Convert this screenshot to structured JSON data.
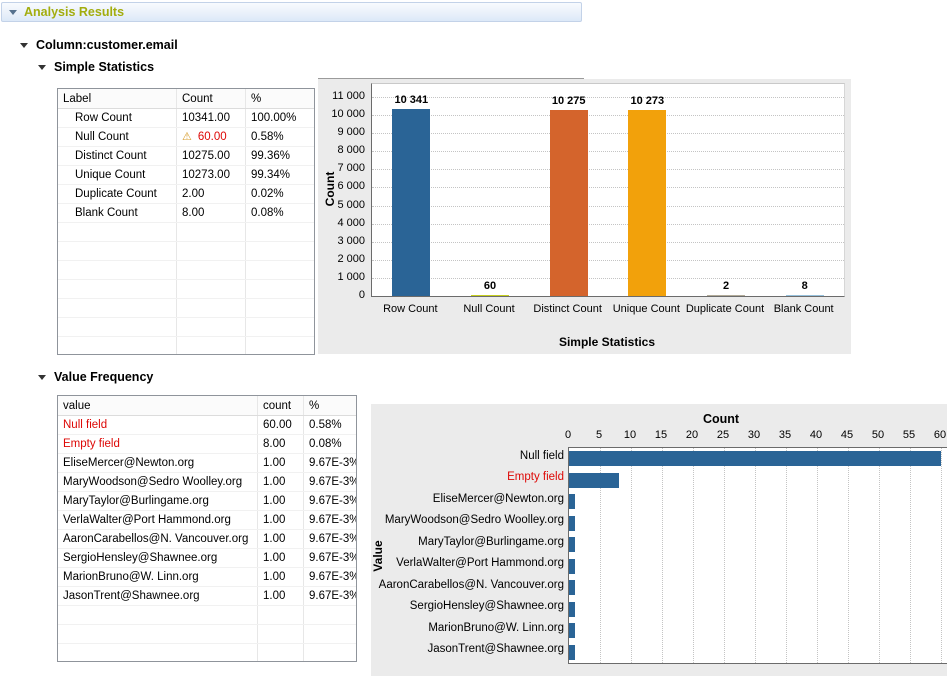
{
  "header": {
    "title": "Analysis Results"
  },
  "sections": {
    "column_title": "Column:customer.email",
    "simple_statistics_title": "Simple Statistics",
    "value_frequency_title": "Value Frequency"
  },
  "colors": {
    "header_text": "#a3ad0e",
    "alert_red": "#dd0806",
    "panel_gray": "#ebebeb",
    "bar_blue": "#2a6496"
  },
  "stats_table": {
    "columns": [
      "Label",
      "Count",
      "%"
    ],
    "rows": [
      {
        "label": "Row Count",
        "count": "10341.00",
        "pct": "100.00%"
      },
      {
        "label": "Null Count",
        "count": "60.00",
        "pct": "0.58%",
        "warning": true,
        "red_cells": [
          1
        ]
      },
      {
        "label": "Distinct Count",
        "count": "10275.00",
        "pct": "99.36%"
      },
      {
        "label": "Unique Count",
        "count": "10273.00",
        "pct": "99.34%"
      },
      {
        "label": "Duplicate Count",
        "count": "2.00",
        "pct": "0.02%"
      },
      {
        "label": "Blank Count",
        "count": "8.00",
        "pct": "0.08%"
      }
    ]
  },
  "freq_table": {
    "columns": [
      "value",
      "count",
      "%"
    ],
    "rows": [
      {
        "value": "Null field",
        "count": "60.00",
        "pct": "0.58%",
        "red_cells": [
          0
        ]
      },
      {
        "value": "Empty field",
        "count": "8.00",
        "pct": "0.08%",
        "red_cells": [
          0
        ]
      },
      {
        "value": "EliseMercer@Newton.org",
        "count": "1.00",
        "pct": "9.67E-3%"
      },
      {
        "value": "MaryWoodson@Sedro Woolley.org",
        "count": "1.00",
        "pct": "9.67E-3%"
      },
      {
        "value": "MaryTaylor@Burlingame.org",
        "count": "1.00",
        "pct": "9.67E-3%"
      },
      {
        "value": "VerlaWalter@Port Hammond.org",
        "count": "1.00",
        "pct": "9.67E-3%"
      },
      {
        "value": "AaronCarabellos@N. Vancouver.org",
        "count": "1.00",
        "pct": "9.67E-3%"
      },
      {
        "value": "SergioHensley@Shawnee.org",
        "count": "1.00",
        "pct": "9.67E-3%"
      },
      {
        "value": "MarionBruno@W. Linn.org",
        "count": "1.00",
        "pct": "9.67E-3%"
      },
      {
        "value": "JasonTrent@Shawnee.org",
        "count": "1.00",
        "pct": "9.67E-3%"
      }
    ]
  },
  "chart_data": [
    {
      "type": "bar",
      "title": "",
      "xlabel": "Simple Statistics",
      "ylabel": "Count",
      "categories": [
        "Row Count",
        "Null Count",
        "Distinct Count",
        "Unique Count",
        "Duplicate Count",
        "Blank Count"
      ],
      "values": [
        10341,
        60,
        10275,
        10273,
        2,
        8
      ],
      "bar_labels": [
        "10 341",
        "60",
        "10 275",
        "10 273",
        "2",
        "8"
      ],
      "bar_colors": [
        "#2a6496",
        "#c6cf1e",
        "#d4642c",
        "#f2a10b",
        "#b2ab99",
        "#97c1dc"
      ],
      "ylim": [
        0,
        11000
      ],
      "yticks": [
        0,
        1000,
        2000,
        3000,
        4000,
        5000,
        6000,
        7000,
        8000,
        9000,
        10000,
        11000
      ],
      "ytick_labels": [
        "0",
        "1 000",
        "2 000",
        "3 000",
        "4 000",
        "5 000",
        "6 000",
        "7 000",
        "8 000",
        "9 000",
        "10 000",
        "11 000"
      ],
      "grid": "horizontal dotted",
      "legend": "none"
    },
    {
      "type": "bar-horizontal",
      "title": "Count",
      "ylabel": "Value",
      "categories": [
        "Null field",
        "Empty field",
        "EliseMercer@Newton.org",
        "MaryWoodson@Sedro Woolley.org",
        "MaryTaylor@Burlingame.org",
        "VerlaWalter@Port Hammond.org",
        "AaronCarabellos@N. Vancouver.org",
        "SergioHensley@Shawnee.org",
        "MarionBruno@W. Linn.org",
        "JasonTrent@Shawnee.org"
      ],
      "values": [
        60,
        8,
        1,
        1,
        1,
        1,
        1,
        1,
        1,
        1
      ],
      "red_label_indexes": [
        1
      ],
      "xlim": [
        0,
        60
      ],
      "xticks": [
        0,
        5,
        10,
        15,
        20,
        25,
        30,
        35,
        40,
        45,
        50,
        55,
        60
      ],
      "bar_color": "#2a6496",
      "grid": "vertical dotted",
      "legend": "none"
    }
  ]
}
